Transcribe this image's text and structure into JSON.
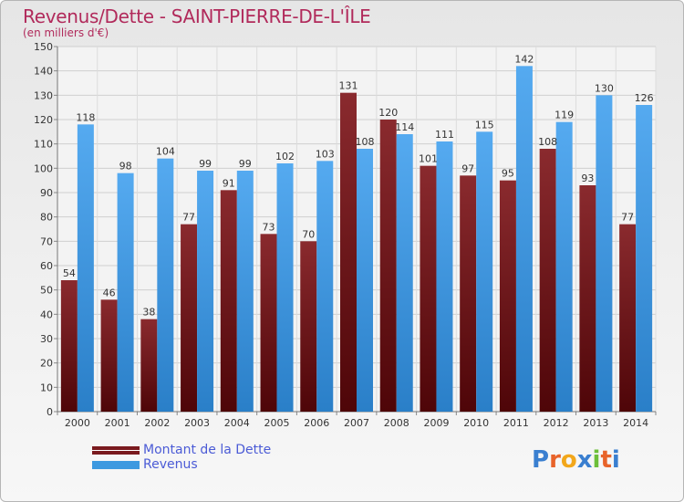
{
  "title": "Revenus/Dette - SAINT-PIERRE-DE-L'ÎLE",
  "subtitle": "(en milliers d'€)",
  "logo": {
    "text": "Proxiti",
    "letters": [
      "P",
      "r",
      "o",
      "x",
      "i",
      "t",
      "i"
    ],
    "colors": [
      "#3a7fd0",
      "#e8632a",
      "#f2a71b",
      "#3a7fd0",
      "#6cbf3a",
      "#e8632a",
      "#3a7fd0"
    ]
  },
  "legend": {
    "items": [
      {
        "label": "Montant de la Dette",
        "color": "#7a1a1e"
      },
      {
        "label": "Revenus",
        "color": "#3d99e0"
      }
    ]
  },
  "chart_data": {
    "type": "bar",
    "categories": [
      "2000",
      "2001",
      "2002",
      "2003",
      "2004",
      "2005",
      "2006",
      "2007",
      "2008",
      "2009",
      "2010",
      "2011",
      "2012",
      "2013",
      "2014"
    ],
    "series": [
      {
        "name": "Montant de la Dette",
        "values": [
          54,
          46,
          38,
          77,
          91,
          73,
          70,
          131,
          120,
          101,
          97,
          95,
          108,
          93,
          77
        ],
        "color": "#7a1a1e"
      },
      {
        "name": "Revenus",
        "values": [
          118,
          98,
          104,
          99,
          99,
          102,
          103,
          108,
          114,
          111,
          115,
          142,
          119,
          130,
          126
        ],
        "color": "#3d99e0"
      }
    ],
    "ylim": [
      0,
      150
    ],
    "yticks": [
      0,
      10,
      20,
      30,
      40,
      50,
      60,
      70,
      80,
      90,
      100,
      110,
      120,
      130,
      140,
      150
    ],
    "grid": true,
    "xlabel": "",
    "ylabel": ""
  }
}
